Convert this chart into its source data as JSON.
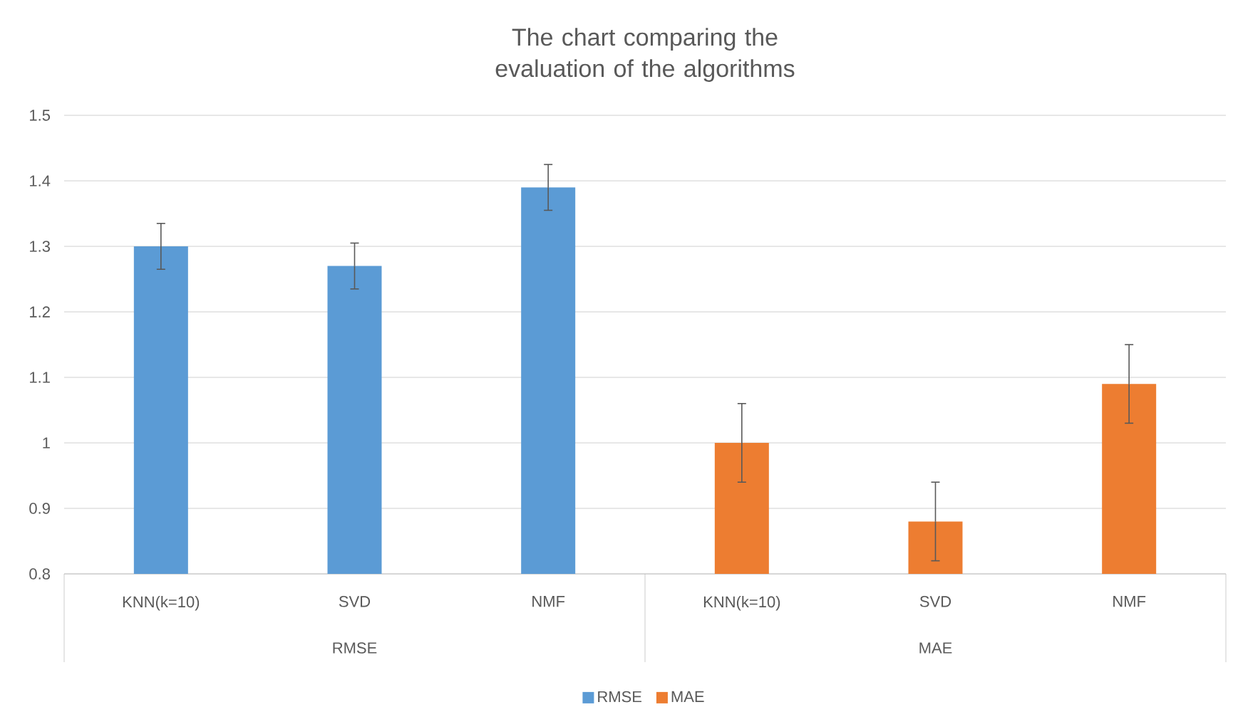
{
  "chart_data": {
    "type": "bar",
    "title": "The chart comparing the evaluation of the algorithms",
    "categories": [
      "KNN(k=10)",
      "SVD",
      "NMF",
      "KNN(k=10)",
      "SVD",
      "NMF"
    ],
    "series": [
      {
        "name": "RMSE",
        "color": "#5b9bd5",
        "values": [
          1.3,
          1.27,
          1.39,
          null,
          null,
          null
        ],
        "errors": [
          0.035,
          0.035,
          0.035,
          null,
          null,
          null
        ]
      },
      {
        "name": "MAE",
        "color": "#ed7d31",
        "values": [
          null,
          null,
          null,
          1.0,
          0.88,
          1.09
        ],
        "errors": [
          null,
          null,
          null,
          0.06,
          0.06,
          0.06
        ]
      }
    ],
    "annotations": [
      "RMSE",
      "MAE"
    ],
    "ylim": [
      0.8,
      1.5
    ],
    "yticks": [
      0.8,
      0.9,
      1,
      1.1,
      1.2,
      1.3,
      1.4,
      1.5
    ],
    "grid": "y",
    "legend": "bottom"
  }
}
